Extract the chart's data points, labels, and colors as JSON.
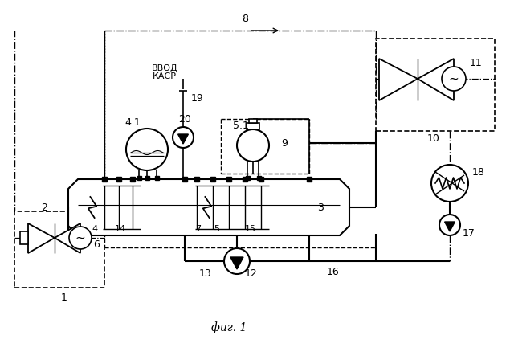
{
  "title": "фиг. 1",
  "bg_color": "#ffffff",
  "lc": "#000000",
  "dash_color": "#444444"
}
